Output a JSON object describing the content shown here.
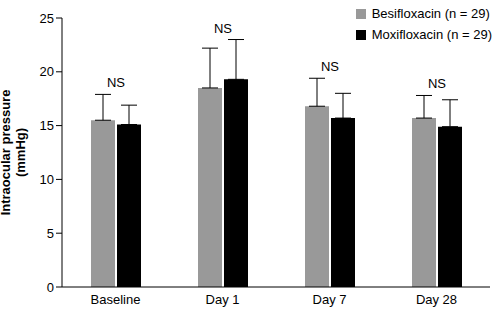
{
  "chart_data": {
    "type": "bar",
    "categories": [
      "Baseline",
      "Day 1",
      "Day 7",
      "Day 28"
    ],
    "y_label": "Intraocular pressure (mmHg)",
    "ylim": [
      0,
      25
    ],
    "yticks": [
      0,
      5,
      10,
      15,
      20,
      25
    ],
    "grid": false,
    "legend": "upper right",
    "annotations": [
      "NS",
      "NS",
      "NS",
      "NS"
    ],
    "series": [
      {
        "name": "Besifloxacin (n = 29)",
        "color": "#999999",
        "values": [
          15.5,
          18.5,
          16.8,
          15.7
        ],
        "errors": [
          2.4,
          3.7,
          2.6,
          2.1
        ]
      },
      {
        "name": "Moxifloxacin (n = 29)",
        "color": "#000000",
        "values": [
          15.1,
          19.3,
          15.7,
          14.9
        ],
        "errors": [
          1.8,
          3.7,
          2.3,
          2.5
        ]
      }
    ]
  }
}
